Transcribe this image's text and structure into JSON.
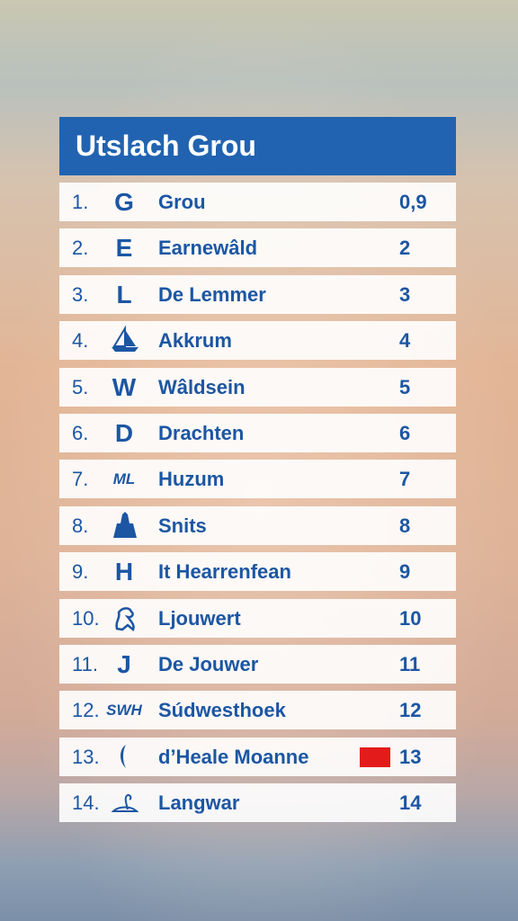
{
  "header": {
    "title": "Utslach Grou"
  },
  "table": {
    "rows": [
      {
        "rank": "1.",
        "logo": "G",
        "name": "Grou",
        "score": "0,9"
      },
      {
        "rank": "2.",
        "logo": "E",
        "name": "Earnewâld",
        "score": "2"
      },
      {
        "rank": "3.",
        "logo": "L",
        "name": "De Lemmer",
        "score": "3"
      },
      {
        "rank": "4.",
        "name": "Akkrum",
        "score": "4"
      },
      {
        "rank": "5.",
        "logo": "W",
        "name": "Wâldsein",
        "score": "5"
      },
      {
        "rank": "6.",
        "logo": "D",
        "name": "Drachten",
        "score": "6"
      },
      {
        "rank": "7.",
        "logo": "ML",
        "name": "Huzum",
        "score": "7"
      },
      {
        "rank": "8.",
        "name": "Snits",
        "score": "8"
      },
      {
        "rank": "9.",
        "logo": "H",
        "name": "It Hearrenfean",
        "score": "9"
      },
      {
        "rank": "10.",
        "name": "Ljouwert",
        "score": "10"
      },
      {
        "rank": "11.",
        "logo": "J",
        "name": "De Jouwer",
        "score": "11"
      },
      {
        "rank": "12.",
        "logo": "SWH",
        "name": "Súdwesthoek",
        "score": "12"
      },
      {
        "rank": "13.",
        "name": "d’Heale Moanne",
        "score": "13"
      },
      {
        "rank": "14.",
        "name": "Langwar",
        "score": "14"
      }
    ]
  }
}
